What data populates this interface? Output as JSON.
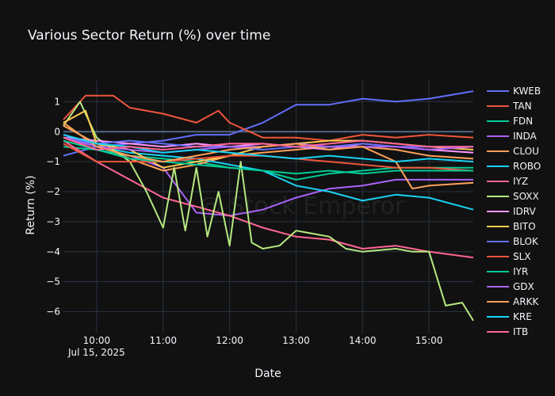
{
  "chart_data": {
    "type": "line",
    "title": "Various Sector Return (%) over time",
    "xlabel": "Date",
    "ylabel": "Return (%)",
    "x_date": "Jul 15, 2025",
    "x_range": [
      "09:30",
      "15:40"
    ],
    "x_ticks": [
      "10:00",
      "11:00",
      "12:00",
      "13:00",
      "14:00",
      "15:00"
    ],
    "ylim": [
      -6.7,
      1.75
    ],
    "y_ticks": [
      1,
      0,
      -1,
      -2,
      -3,
      -4,
      -5,
      -6
    ],
    "grid": true,
    "legend_position": "right",
    "watermark": "@ Stock Emperor",
    "series": [
      {
        "name": "KWEB",
        "color": "#636efa",
        "x": [
          "09:30",
          "10:00",
          "10:30",
          "11:00",
          "11:30",
          "12:00",
          "12:30",
          "13:00",
          "13:30",
          "14:00",
          "14:30",
          "15:00",
          "15:40"
        ],
        "values": [
          -0.8,
          -0.5,
          -0.4,
          -0.3,
          -0.1,
          -0.1,
          0.3,
          0.9,
          0.9,
          1.1,
          1.0,
          1.1,
          1.35
        ]
      },
      {
        "name": "TAN",
        "color": "#ef553b",
        "x": [
          "09:30",
          "09:50",
          "10:15",
          "10:30",
          "11:00",
          "11:30",
          "11:50",
          "12:00",
          "12:30",
          "13:00",
          "13:30",
          "14:00",
          "14:30",
          "15:00",
          "15:40"
        ],
        "values": [
          0.4,
          1.2,
          1.2,
          0.8,
          0.6,
          0.3,
          0.7,
          0.3,
          -0.2,
          -0.2,
          -0.3,
          -0.1,
          -0.2,
          -0.1,
          -0.2
        ]
      },
      {
        "name": "FDN",
        "color": "#00cc96",
        "x": [
          "09:30",
          "10:00",
          "10:30",
          "11:00",
          "11:30",
          "12:00",
          "12:30",
          "13:00",
          "13:30",
          "14:00",
          "14:30",
          "15:00",
          "15:40"
        ],
        "values": [
          -0.5,
          -0.6,
          -0.8,
          -0.9,
          -1.0,
          -1.2,
          -1.3,
          -1.6,
          -1.4,
          -1.3,
          -1.2,
          -1.2,
          -1.2
        ]
      },
      {
        "name": "INDA",
        "color": "#ab63fa",
        "x": [
          "09:30",
          "10:00",
          "10:30",
          "11:00",
          "11:30",
          "12:00",
          "12:30",
          "13:00",
          "13:30",
          "14:00",
          "14:30",
          "15:00",
          "15:40"
        ],
        "values": [
          -0.1,
          -0.5,
          -0.8,
          -1.2,
          -2.7,
          -2.8,
          -2.6,
          -2.2,
          -1.9,
          -1.8,
          -1.6,
          -1.6,
          -1.6
        ]
      },
      {
        "name": "CLOU",
        "color": "#ffa15a",
        "x": [
          "09:30",
          "10:00",
          "10:30",
          "11:00",
          "11:30",
          "12:00",
          "12:30",
          "13:00",
          "13:30",
          "14:00",
          "14:30",
          "15:00",
          "15:40"
        ],
        "values": [
          0.2,
          -0.4,
          -0.9,
          -1.3,
          -1.1,
          -0.8,
          -0.7,
          -0.6,
          -0.5,
          -0.5,
          -0.6,
          -0.8,
          -0.9
        ]
      },
      {
        "name": "ROBO",
        "color": "#19d3f3",
        "x": [
          "09:30",
          "10:00",
          "10:30",
          "11:00",
          "11:30",
          "12:00",
          "12:30",
          "13:00",
          "13:30",
          "14:00",
          "14:30",
          "15:00",
          "15:40"
        ],
        "values": [
          -0.2,
          -0.5,
          -0.7,
          -0.8,
          -0.9,
          -1.1,
          -1.3,
          -1.8,
          -2.0,
          -2.3,
          -2.1,
          -2.2,
          -2.6
        ]
      },
      {
        "name": "IYZ",
        "color": "#ff6692",
        "x": [
          "09:30",
          "10:00",
          "10:30",
          "11:00",
          "11:30",
          "12:00",
          "12:30",
          "13:00",
          "13:30",
          "14:00",
          "14:30",
          "15:00",
          "15:40"
        ],
        "values": [
          -0.3,
          -1.0,
          -1.6,
          -2.2,
          -2.5,
          -2.8,
          -3.2,
          -3.5,
          -3.6,
          -3.9,
          -3.8,
          -4.0,
          -4.2
        ]
      },
      {
        "name": "SOXX",
        "color": "#b6e880",
        "x": [
          "09:30",
          "09:45",
          "10:00",
          "10:30",
          "10:45",
          "11:00",
          "11:10",
          "11:20",
          "11:30",
          "11:40",
          "11:50",
          "12:00",
          "12:10",
          "12:20",
          "12:30",
          "12:45",
          "13:00",
          "13:30",
          "13:45",
          "14:00",
          "14:30",
          "14:45",
          "15:00",
          "15:15",
          "15:30",
          "15:40"
        ],
        "values": [
          0.2,
          1.0,
          -0.2,
          -1.0,
          -2.0,
          -3.2,
          -1.2,
          -3.3,
          -1.2,
          -3.5,
          -2.0,
          -3.8,
          -1.0,
          -3.7,
          -3.9,
          -3.8,
          -3.3,
          -3.5,
          -3.9,
          -4.0,
          -3.9,
          -4.0,
          -4.0,
          -5.8,
          -5.7,
          -6.3
        ]
      },
      {
        "name": "IDRV",
        "color": "#ff97ff",
        "x": [
          "09:30",
          "10:00",
          "10:30",
          "11:00",
          "11:30",
          "12:00",
          "12:30",
          "13:00",
          "13:30",
          "14:00",
          "14:30",
          "15:00",
          "15:40"
        ],
        "values": [
          -0.2,
          -0.3,
          -0.4,
          -0.5,
          -0.4,
          -0.5,
          -0.4,
          -0.5,
          -0.6,
          -0.4,
          -0.5,
          -0.6,
          -0.7
        ]
      },
      {
        "name": "BITO",
        "color": "#fecb52",
        "x": [
          "09:30",
          "09:50",
          "10:00",
          "10:30",
          "11:00",
          "11:30",
          "12:00",
          "12:30",
          "13:00",
          "13:30",
          "14:00",
          "14:30",
          "15:00",
          "15:40"
        ],
        "values": [
          0.3,
          0.7,
          -0.4,
          -0.6,
          -1.2,
          -1.0,
          -0.8,
          -0.5,
          -0.4,
          -0.3,
          -0.3,
          -0.4,
          -0.5,
          -0.6
        ]
      },
      {
        "name": "BLOK",
        "color": "#636efa",
        "x": [
          "09:30",
          "10:00",
          "10:30",
          "11:00",
          "11:30",
          "12:00",
          "12:30",
          "13:00",
          "13:30",
          "14:00",
          "14:30",
          "15:00",
          "15:40"
        ],
        "values": [
          -0.2,
          -0.4,
          -0.3,
          -0.4,
          -0.5,
          -0.5,
          -0.6,
          -0.5,
          -0.5,
          -0.4,
          -0.5,
          -0.5,
          -0.5
        ]
      },
      {
        "name": "SLX",
        "color": "#ef553b",
        "x": [
          "09:30",
          "10:00",
          "10:30",
          "11:00",
          "11:30",
          "12:00",
          "12:30",
          "13:00",
          "13:30",
          "14:00",
          "14:30",
          "15:00",
          "15:40"
        ],
        "values": [
          -0.4,
          -1.0,
          -1.0,
          -1.0,
          -0.9,
          -0.8,
          -0.8,
          -0.9,
          -1.0,
          -1.1,
          -1.2,
          -1.2,
          -1.3
        ]
      },
      {
        "name": "IYR",
        "color": "#00cc96",
        "x": [
          "09:30",
          "10:00",
          "10:30",
          "11:00",
          "11:30",
          "12:00",
          "12:30",
          "13:00",
          "13:30",
          "14:00",
          "14:30",
          "15:00",
          "15:40"
        ],
        "values": [
          -0.3,
          -0.6,
          -0.9,
          -1.0,
          -1.1,
          -1.2,
          -1.3,
          -1.4,
          -1.3,
          -1.4,
          -1.3,
          -1.3,
          -1.3
        ]
      },
      {
        "name": "GDX",
        "color": "#ab63fa",
        "x": [
          "09:30",
          "10:00",
          "10:30",
          "11:00",
          "11:30",
          "12:00",
          "12:30",
          "13:00",
          "13:30",
          "14:00",
          "14:30",
          "15:00",
          "15:40"
        ],
        "values": [
          -0.2,
          -0.5,
          -0.6,
          -0.7,
          -0.6,
          -0.5,
          -0.5,
          -0.4,
          -0.5,
          -0.5,
          -0.5,
          -0.6,
          -0.5
        ]
      },
      {
        "name": "ARKK",
        "color": "#ffa15a",
        "x": [
          "09:30",
          "10:00",
          "10:30",
          "11:00",
          "11:30",
          "12:00",
          "12:30",
          "13:00",
          "13:30",
          "14:00",
          "14:30",
          "14:45",
          "15:00",
          "15:40"
        ],
        "values": [
          0.3,
          -0.5,
          -0.8,
          -1.0,
          -0.8,
          -0.6,
          -0.5,
          -0.4,
          -0.6,
          -0.5,
          -1.0,
          -1.9,
          -1.8,
          -1.7
        ]
      },
      {
        "name": "KRE",
        "color": "#19d3f3",
        "x": [
          "09:30",
          "10:00",
          "10:30",
          "11:00",
          "11:30",
          "12:00",
          "12:30",
          "13:00",
          "13:30",
          "14:00",
          "14:30",
          "15:00",
          "15:40"
        ],
        "values": [
          -0.1,
          -0.4,
          -0.5,
          -0.7,
          -0.6,
          -0.7,
          -0.8,
          -0.9,
          -0.8,
          -0.9,
          -1.0,
          -0.9,
          -1.0
        ]
      },
      {
        "name": "ITB",
        "color": "#ff6692",
        "x": [
          "09:30",
          "10:00",
          "10:30",
          "11:00",
          "11:30",
          "12:00",
          "12:30",
          "13:00",
          "13:30",
          "14:00",
          "14:30",
          "15:00",
          "15:40"
        ],
        "values": [
          -0.2,
          -0.6,
          -0.5,
          -0.6,
          -0.5,
          -0.4,
          -0.4,
          -0.5,
          -0.4,
          -0.3,
          -0.4,
          -0.5,
          -0.5
        ]
      }
    ]
  }
}
